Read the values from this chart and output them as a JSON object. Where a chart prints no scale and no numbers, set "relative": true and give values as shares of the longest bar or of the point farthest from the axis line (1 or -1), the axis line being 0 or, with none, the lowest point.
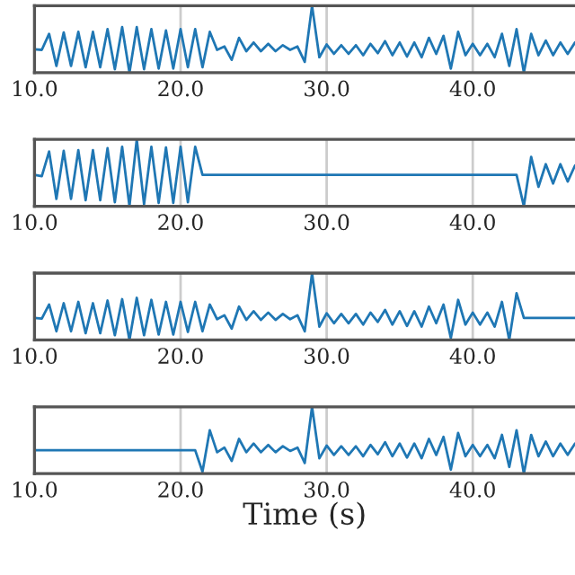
{
  "chart_data": [
    {
      "type": "line",
      "relative": true,
      "color": "#1f77b4",
      "grid": "x",
      "tick_labels": "x",
      "xlim": [
        10,
        47
      ],
      "xticks": [
        {
          "value": 10,
          "label": "10.0"
        },
        {
          "value": 20,
          "label": "20.0"
        },
        {
          "value": 30,
          "label": "30.0"
        },
        {
          "value": 40,
          "label": "40.0"
        }
      ],
      "x": [
        10,
        10.5,
        11,
        11.5,
        12,
        12.5,
        13,
        13.5,
        14,
        14.5,
        15,
        15.5,
        16,
        16.5,
        17,
        17.5,
        18,
        18.5,
        19,
        19.5,
        20,
        20.5,
        21,
        21.5,
        22,
        22.5,
        23,
        23.5,
        24,
        24.5,
        25,
        25.5,
        26,
        26.5,
        27,
        27.5,
        28,
        28.5,
        29,
        29.5,
        30,
        30.5,
        31,
        31.5,
        32,
        32.5,
        33,
        33.5,
        34,
        34.5,
        35,
        35.5,
        36,
        36.5,
        37,
        37.5,
        38,
        38.5,
        39,
        39.5,
        40,
        40.5,
        41,
        41.5,
        42,
        42.5,
        43,
        43.5,
        44,
        44.5,
        45,
        45.5,
        46,
        46.5,
        47
      ],
      "values": [
        0.35,
        0.34,
        0.58,
        0.1,
        0.6,
        0.1,
        0.61,
        0.08,
        0.61,
        0.08,
        0.65,
        0.05,
        0.68,
        0,
        0.68,
        0.05,
        0.65,
        0.06,
        0.63,
        0.06,
        0.65,
        0.08,
        0.65,
        0.08,
        0.61,
        0.34,
        0.39,
        0.19,
        0.52,
        0.32,
        0.45,
        0.32,
        0.43,
        0.32,
        0.41,
        0.34,
        0.39,
        0.16,
        1,
        0.23,
        0.42,
        0.28,
        0.41,
        0.28,
        0.41,
        0.26,
        0.43,
        0.29,
        0.47,
        0.26,
        0.45,
        0.24,
        0.45,
        0.23,
        0.52,
        0.28,
        0.55,
        0.06,
        0.61,
        0.26,
        0.43,
        0.26,
        0.43,
        0.23,
        0.58,
        0.1,
        0.65,
        0,
        0.58,
        0.26,
        0.48,
        0.26,
        0.45,
        0.28,
        0.45
      ]
    },
    {
      "type": "line",
      "relative": true,
      "color": "#1f77b4",
      "grid": "x",
      "tick_labels": "x",
      "xlim": [
        10,
        47
      ],
      "xticks": [
        {
          "value": 10,
          "label": "10.0"
        },
        {
          "value": 20,
          "label": "20.0"
        },
        {
          "value": 30,
          "label": "30.0"
        },
        {
          "value": 40,
          "label": "40.0"
        }
      ],
      "x": [
        10,
        10.5,
        11,
        11.5,
        12,
        12.5,
        13,
        13.5,
        14,
        14.5,
        15,
        15.5,
        16,
        16.5,
        17,
        17.5,
        18,
        18.5,
        19,
        19.5,
        20,
        20.5,
        21,
        21.5,
        22,
        22.5,
        23,
        23.5,
        24,
        24.5,
        25,
        25.5,
        26,
        26.5,
        27,
        27.5,
        28,
        28.5,
        29,
        29.5,
        30,
        30.5,
        31,
        31.5,
        32,
        32.5,
        33,
        33.5,
        34,
        34.5,
        35,
        35.5,
        36,
        36.5,
        37,
        37.5,
        38,
        38.5,
        39,
        39.5,
        40,
        40.5,
        41,
        41.5,
        42,
        42.5,
        43,
        43.5,
        44,
        44.5,
        45,
        45.5,
        46,
        46.5,
        47
      ],
      "values": [
        0.47,
        0.45,
        0.82,
        0.11,
        0.83,
        0.11,
        0.84,
        0.09,
        0.84,
        0.09,
        0.87,
        0.06,
        0.89,
        0,
        1,
        0.03,
        0.89,
        0.05,
        0.88,
        0.05,
        0.89,
        0.06,
        0.89,
        0.47,
        0.47,
        0.47,
        0.47,
        0.47,
        0.47,
        0.47,
        0.47,
        0.47,
        0.47,
        0.47,
        0.47,
        0.47,
        0.47,
        0.47,
        0.47,
        0.47,
        0.47,
        0.47,
        0.47,
        0.47,
        0.47,
        0.47,
        0.47,
        0.47,
        0.47,
        0.47,
        0.47,
        0.47,
        0.47,
        0.47,
        0.47,
        0.47,
        0.47,
        0.47,
        0.47,
        0.47,
        0.47,
        0.47,
        0.47,
        0.47,
        0.47,
        0.47,
        0.47,
        0,
        0.74,
        0.29,
        0.63,
        0.34,
        0.63,
        0.37,
        0.61
      ]
    },
    {
      "type": "line",
      "relative": true,
      "color": "#1f77b4",
      "grid": "x",
      "tick_labels": "x",
      "xlim": [
        10,
        47
      ],
      "xticks": [
        {
          "value": 10,
          "label": "10.0"
        },
        {
          "value": 20,
          "label": "20.0"
        },
        {
          "value": 30,
          "label": "30.0"
        },
        {
          "value": 40,
          "label": "40.0"
        }
      ],
      "x": [
        10,
        10.5,
        11,
        11.5,
        12,
        12.5,
        13,
        13.5,
        14,
        14.5,
        15,
        15.5,
        16,
        16.5,
        17,
        17.5,
        18,
        18.5,
        19,
        19.5,
        20,
        20.5,
        21,
        21.5,
        22,
        22.5,
        23,
        23.5,
        24,
        24.5,
        25,
        25.5,
        26,
        26.5,
        27,
        27.5,
        28,
        28.5,
        29,
        29.5,
        30,
        30.5,
        31,
        31.5,
        32,
        32.5,
        33,
        33.5,
        34,
        34.5,
        35,
        35.5,
        36,
        36.5,
        37,
        37.5,
        38,
        38.5,
        39,
        39.5,
        40,
        40.5,
        41,
        41.5,
        42,
        42.5,
        43,
        43.5,
        44,
        44.5,
        45,
        45.5,
        46,
        46.5,
        47
      ],
      "values": [
        0.33,
        0.32,
        0.53,
        0.13,
        0.55,
        0.13,
        0.57,
        0.1,
        0.55,
        0.1,
        0.59,
        0.07,
        0.61,
        0,
        0.63,
        0.07,
        0.6,
        0.08,
        0.57,
        0.08,
        0.57,
        0.12,
        0.57,
        0.13,
        0.53,
        0.31,
        0.37,
        0.17,
        0.5,
        0.3,
        0.43,
        0.3,
        0.41,
        0.3,
        0.39,
        0.31,
        0.37,
        0.13,
        1,
        0.2,
        0.4,
        0.25,
        0.39,
        0.25,
        0.39,
        0.23,
        0.41,
        0.27,
        0.45,
        0.23,
        0.43,
        0.21,
        0.43,
        0.2,
        0.5,
        0.25,
        0.53,
        0.03,
        0.6,
        0.23,
        0.41,
        0.23,
        0.41,
        0.2,
        0.57,
        0,
        0.7,
        0.33,
        0.33,
        0.33,
        0.33,
        0.33,
        0.33,
        0.33,
        0.33
      ]
    },
    {
      "type": "line",
      "relative": true,
      "color": "#1f77b4",
      "grid": "x",
      "tick_labels": "x",
      "xlim": [
        10,
        47
      ],
      "xlabel": "Time (s)",
      "xticks": [
        {
          "value": 10,
          "label": "10.0"
        },
        {
          "value": 20,
          "label": "20.0"
        },
        {
          "value": 30,
          "label": "30.0"
        },
        {
          "value": 40,
          "label": "40.0"
        }
      ],
      "x": [
        10,
        10.5,
        11,
        11.5,
        12,
        12.5,
        13,
        13.5,
        14,
        14.5,
        15,
        15.5,
        16,
        16.5,
        17,
        17.5,
        18,
        18.5,
        19,
        19.5,
        20,
        20.5,
        21,
        21.5,
        22,
        22.5,
        23,
        23.5,
        24,
        24.5,
        25,
        25.5,
        26,
        26.5,
        27,
        27.5,
        28,
        28.5,
        29,
        29.5,
        30,
        30.5,
        31,
        31.5,
        32,
        32.5,
        33,
        33.5,
        34,
        34.5,
        35,
        35.5,
        36,
        36.5,
        37,
        37.5,
        38,
        38.5,
        39,
        39.5,
        40,
        40.5,
        41,
        41.5,
        42,
        42.5,
        43,
        43.5,
        44,
        44.5,
        45,
        45.5,
        46,
        46.5,
        47
      ],
      "values": [
        0.35,
        0.35,
        0.35,
        0.35,
        0.35,
        0.35,
        0.35,
        0.35,
        0.35,
        0.35,
        0.35,
        0.35,
        0.35,
        0.35,
        0.35,
        0.35,
        0.35,
        0.35,
        0.35,
        0.35,
        0.35,
        0.35,
        0.35,
        0.03,
        0.65,
        0.32,
        0.39,
        0.19,
        0.52,
        0.32,
        0.45,
        0.32,
        0.43,
        0.32,
        0.41,
        0.34,
        0.39,
        0.16,
        1,
        0.23,
        0.42,
        0.28,
        0.41,
        0.28,
        0.41,
        0.26,
        0.43,
        0.29,
        0.47,
        0.26,
        0.45,
        0.24,
        0.45,
        0.23,
        0.52,
        0.28,
        0.55,
        0.06,
        0.61,
        0.26,
        0.43,
        0.26,
        0.43,
        0.23,
        0.58,
        0.1,
        0.65,
        0,
        0.58,
        0.26,
        0.48,
        0.26,
        0.45,
        0.28,
        0.45
      ]
    }
  ]
}
